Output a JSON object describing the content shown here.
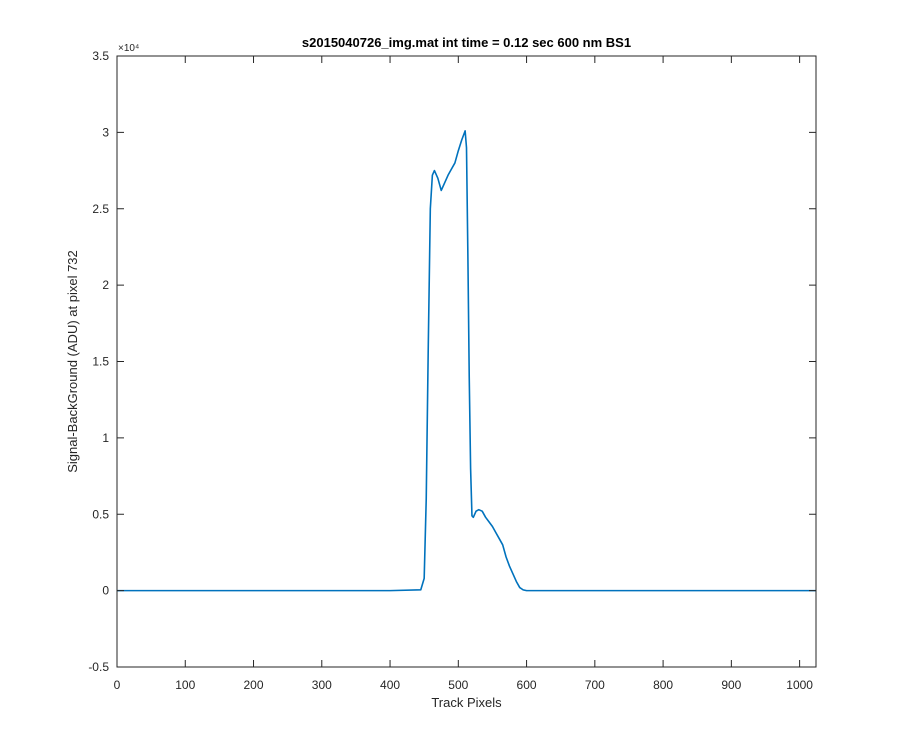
{
  "chart_data": {
    "type": "line",
    "title": "s2015040726_img.mat int time = 0.12 sec  600 nm BS1",
    "xlabel": "Track Pixels",
    "ylabel": "Signal-BackGround (ADU) at pixel 732",
    "xlim": [
      0,
      1024
    ],
    "ylim": [
      -0.5,
      3.5
    ],
    "y_scale_label": "×10⁴",
    "x_ticks": [
      0,
      100,
      200,
      300,
      400,
      500,
      600,
      700,
      800,
      900,
      1000
    ],
    "x_tick_labels": [
      "0",
      "100",
      "200",
      "300",
      "400",
      "500",
      "600",
      "700",
      "800",
      "900",
      "1000"
    ],
    "y_ticks": [
      -0.5,
      0,
      0.5,
      1,
      1.5,
      2,
      2.5,
      3,
      3.5
    ],
    "y_tick_labels": [
      "-0.5",
      "0",
      "0.5",
      "1",
      "1.5",
      "2",
      "2.5",
      "3",
      "3.5"
    ],
    "grid": false,
    "line_color": "#0072BD",
    "series": [
      {
        "x": [
          0,
          100,
          200,
          300,
          400,
          445,
          450,
          453,
          456,
          459,
          462,
          465,
          470,
          475,
          480,
          485,
          490,
          495,
          500,
          505,
          510,
          512,
          514,
          516,
          518,
          520,
          522,
          526,
          530,
          535,
          540,
          545,
          550,
          555,
          560,
          565,
          570,
          575,
          580,
          585,
          590,
          595,
          600,
          610,
          700,
          800,
          900,
          1024
        ],
        "y": [
          0,
          0,
          0,
          0,
          0,
          0.005,
          0.08,
          0.6,
          1.6,
          2.5,
          2.72,
          2.75,
          2.7,
          2.62,
          2.67,
          2.72,
          2.76,
          2.8,
          2.88,
          2.95,
          3.01,
          2.9,
          2.2,
          1.4,
          0.8,
          0.49,
          0.48,
          0.52,
          0.53,
          0.52,
          0.48,
          0.45,
          0.42,
          0.38,
          0.34,
          0.3,
          0.22,
          0.16,
          0.11,
          0.06,
          0.02,
          0.005,
          0,
          0,
          0,
          0,
          0,
          0
        ]
      }
    ]
  }
}
